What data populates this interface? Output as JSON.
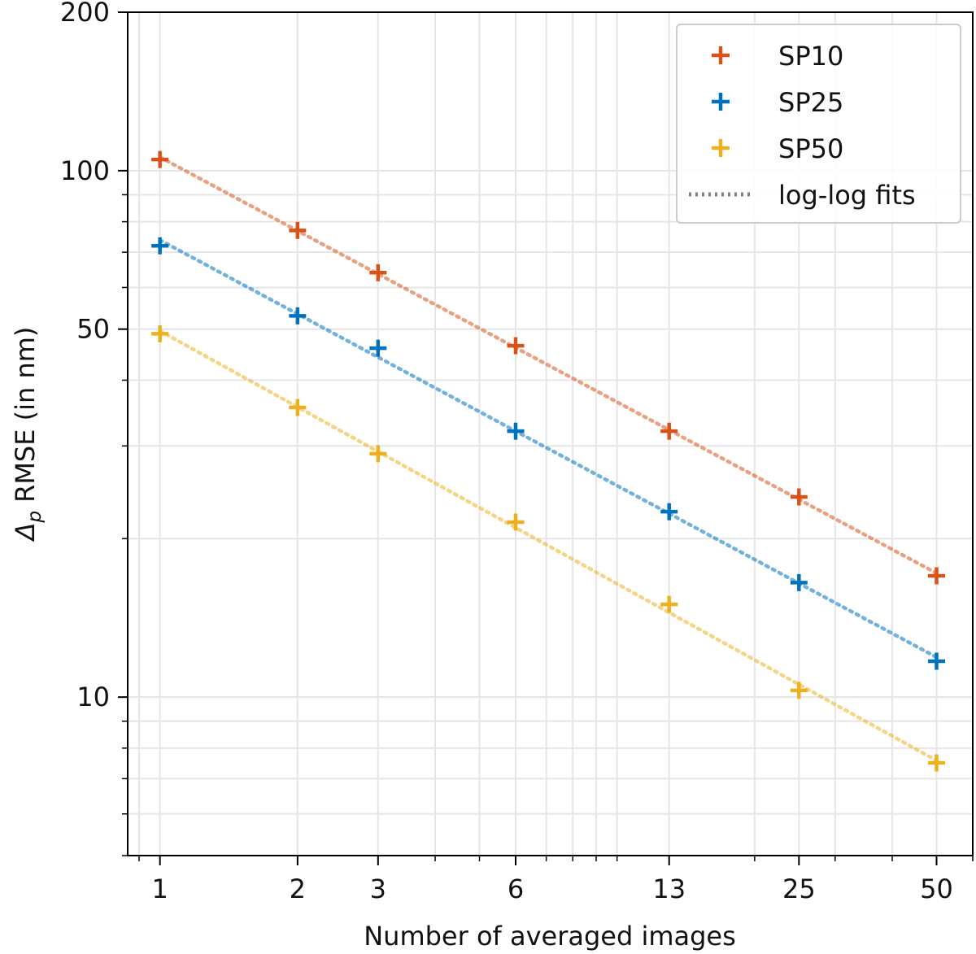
{
  "chart_data": {
    "type": "scatter",
    "x_scale": "log",
    "y_scale": "log",
    "xlabel": "Number of averaged images",
    "ylabel": "RMSE (in nm)",
    "ylabel_symbol": "Δ",
    "ylabel_subscript": "p",
    "xlim": [
      0.85,
      60
    ],
    "ylim": [
      5,
      200
    ],
    "x_ticks": [
      1,
      2,
      3,
      6,
      13,
      25,
      50
    ],
    "x_tick_labels": [
      "1",
      "2",
      "3",
      "6",
      "13",
      "25",
      "50"
    ],
    "y_ticks": [
      10,
      50,
      100,
      200
    ],
    "y_tick_labels": [
      "10",
      "50",
      "100",
      "200"
    ],
    "grid": true,
    "x": [
      1,
      2,
      3,
      6,
      13,
      25,
      50
    ],
    "series": [
      {
        "name": "SP10",
        "color": "#d95319",
        "values": [
          105,
          77,
          64,
          46.5,
          32,
          24,
          17
        ]
      },
      {
        "name": "SP25",
        "color": "#0072bd",
        "values": [
          72,
          53,
          46,
          32,
          22.5,
          16.5,
          11.7
        ]
      },
      {
        "name": "SP50",
        "color": "#edb120",
        "values": [
          49,
          35.5,
          29,
          21.5,
          15,
          10.3,
          7.5
        ]
      }
    ],
    "fit_label": "log-log fits",
    "fit_color": "#808080",
    "legend_position": "top-right"
  }
}
